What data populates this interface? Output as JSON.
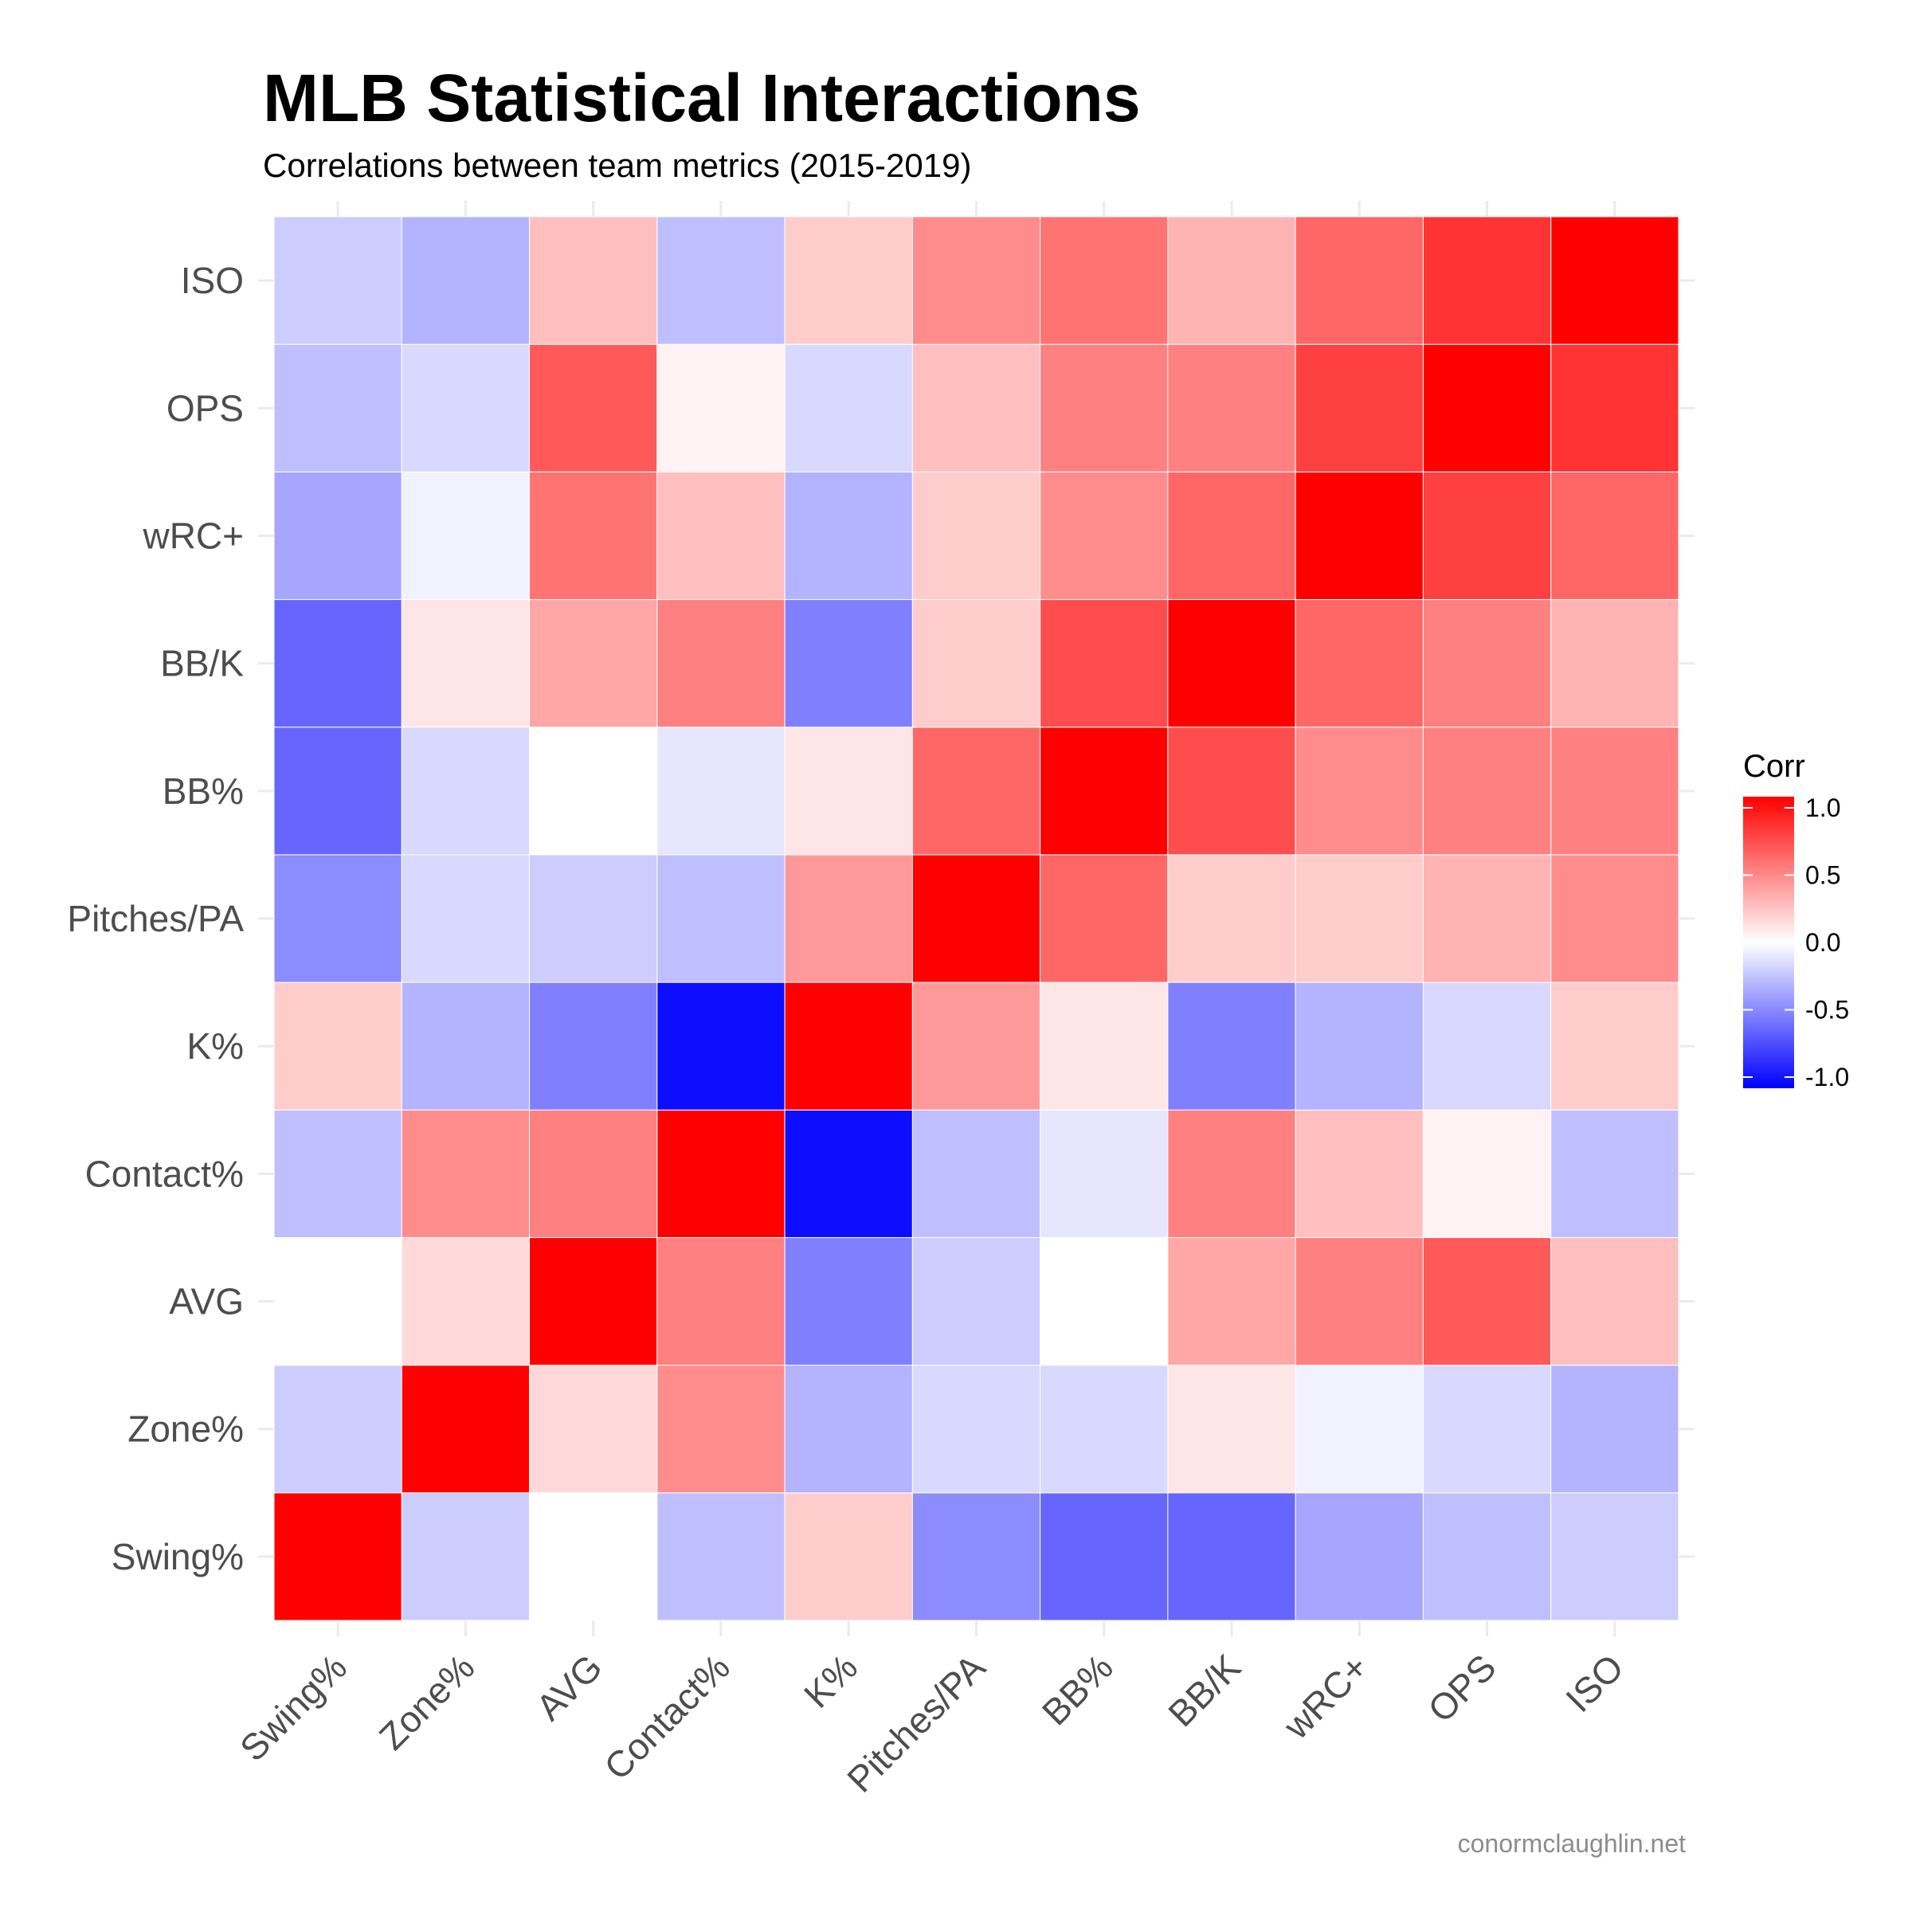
{
  "chart_data": {
    "type": "heatmap",
    "title": "MLB Statistical Interactions",
    "subtitle": "Correlations between team metrics (2015-2019)",
    "caption": "conormclaughlin.net",
    "x_categories": [
      "Swing%",
      "Zone%",
      "AVG",
      "Contact%",
      "K%",
      "Pitches/PA",
      "BB%",
      "BB/K",
      "wRC+",
      "OPS",
      "ISO"
    ],
    "y_categories": [
      "Swing%",
      "Zone%",
      "AVG",
      "Contact%",
      "K%",
      "Pitches/PA",
      "BB%",
      "BB/K",
      "wRC+",
      "OPS",
      "ISO"
    ],
    "values": [
      [
        1.0,
        -0.2,
        0.0,
        -0.25,
        0.2,
        -0.45,
        -0.6,
        -0.6,
        -0.35,
        -0.25,
        -0.2
      ],
      [
        -0.2,
        1.0,
        0.15,
        0.45,
        -0.3,
        -0.15,
        -0.15,
        0.1,
        -0.05,
        -0.15,
        -0.3
      ],
      [
        0.0,
        0.15,
        1.0,
        0.5,
        -0.5,
        -0.2,
        0.0,
        0.35,
        0.5,
        0.65,
        0.25
      ],
      [
        -0.25,
        0.45,
        0.5,
        1.0,
        -0.95,
        -0.25,
        -0.1,
        0.5,
        0.25,
        0.05,
        -0.25
      ],
      [
        0.2,
        -0.3,
        -0.5,
        -0.95,
        1.0,
        0.4,
        0.1,
        -0.5,
        -0.3,
        -0.15,
        0.2
      ],
      [
        -0.45,
        -0.15,
        -0.2,
        -0.25,
        0.4,
        1.0,
        0.6,
        0.2,
        0.2,
        0.3,
        0.45
      ],
      [
        -0.6,
        -0.15,
        0.0,
        -0.1,
        0.1,
        0.6,
        1.0,
        0.7,
        0.45,
        0.5,
        0.5
      ],
      [
        -0.6,
        0.1,
        0.35,
        0.5,
        -0.5,
        0.2,
        0.7,
        1.0,
        0.6,
        0.5,
        0.3
      ],
      [
        -0.35,
        -0.05,
        0.55,
        0.25,
        -0.3,
        0.2,
        0.45,
        0.6,
        1.0,
        0.75,
        0.6
      ],
      [
        -0.25,
        -0.15,
        0.65,
        0.05,
        -0.15,
        0.25,
        0.5,
        0.5,
        0.75,
        1.0,
        0.8
      ],
      [
        -0.2,
        -0.3,
        0.25,
        -0.25,
        0.2,
        0.45,
        0.55,
        0.3,
        0.6,
        0.8,
        1.0
      ]
    ],
    "value_range": [
      -1,
      1
    ],
    "color_low": "#0000ff",
    "color_mid": "#ffffff",
    "color_high": "#ff0000",
    "legend": {
      "title": "Corr",
      "ticks": [
        1.0,
        0.5,
        0.0,
        -0.5,
        -1.0
      ],
      "tick_labels": [
        "1.0",
        "0.5",
        "0.0",
        "-0.5",
        "-1.0"
      ],
      "position": "right"
    },
    "grid": true
  }
}
